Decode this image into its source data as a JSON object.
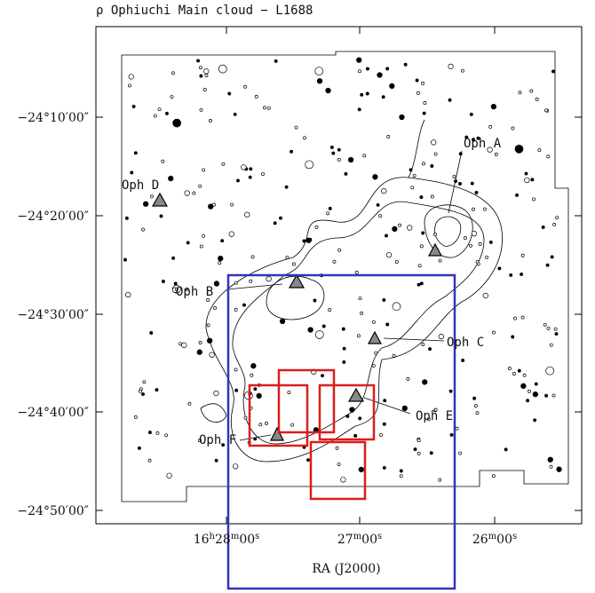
{
  "title": "ρ Ophiuchi Main cloud − L1688",
  "x_axis_label": "RA (J2000)",
  "y_tick_labels": [
    "−24°10′00″",
    "−24°20′00″",
    "−24°30′00″",
    "−24°40′00″",
    "−24°50′00″"
  ],
  "x_tick_labels": [
    [
      "16",
      "h",
      "28",
      "m",
      "00",
      "s"
    ],
    [
      "27",
      "m",
      "00",
      "s"
    ],
    [
      "26",
      "m",
      "00",
      "s"
    ]
  ],
  "regions": [
    "Oph A",
    "Oph B",
    "Oph C",
    "Oph D",
    "Oph E",
    "Oph F"
  ]
}
